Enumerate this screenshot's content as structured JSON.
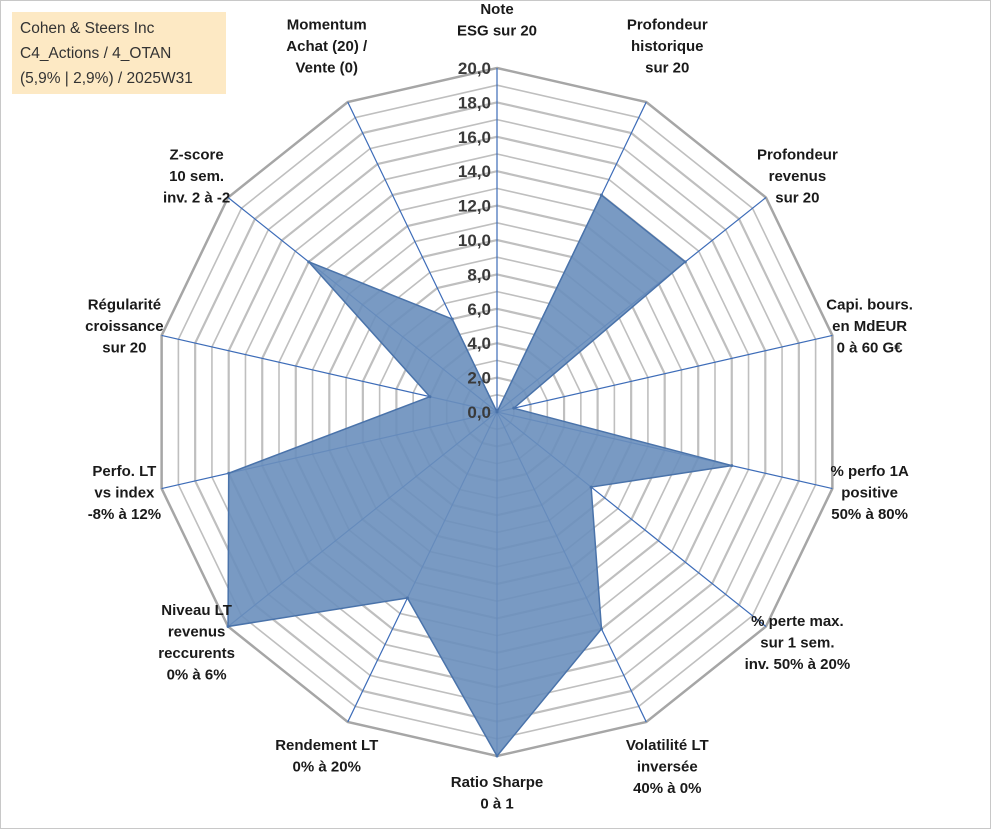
{
  "info_box": {
    "line1": "Cohen & Steers Inc",
    "line2": "C4_Actions / 4_OTAN",
    "line3": "(5,9% | 2,9%) / 2025W31"
  },
  "colors": {
    "fill": "#6a8fbd",
    "stroke": "#4a73aa",
    "spoke": "#3d6cb8",
    "grid": "#bfbfbf",
    "grid_outer": "#a6a6a6",
    "info_bg": "#fde9c4"
  },
  "chart_data": {
    "type": "radar",
    "title": "",
    "rmin": 0,
    "rmax": 20,
    "tick_step": 1,
    "tick_labels": [
      "0,0",
      "2,0",
      "4,0",
      "6,0",
      "8,0",
      "10,0",
      "12,0",
      "14,0",
      "16,0",
      "18,0",
      "20,0"
    ],
    "axes": [
      {
        "label_lines": [
          "Note",
          "ESG sur 20"
        ],
        "value": 0
      },
      {
        "label_lines": [
          "Profondeur",
          "historique",
          "sur 20"
        ],
        "value": 14
      },
      {
        "label_lines": [
          "Profondeur",
          "revenus",
          "sur 20"
        ],
        "value": 14
      },
      {
        "label_lines": [
          "Capi. bours.",
          "en MdEUR",
          "0 à 60 G€"
        ],
        "value": 1
      },
      {
        "label_lines": [
          "% perfo 1A",
          "positive",
          "50% à 80%"
        ],
        "value": 14
      },
      {
        "label_lines": [
          "% perte max.",
          "sur 1 sem.",
          "inv. 50% à 20%"
        ],
        "value": 7
      },
      {
        "label_lines": [
          "Volatilité LT",
          "inversée",
          "40% à 0%"
        ],
        "value": 14
      },
      {
        "label_lines": [
          "Ratio Sharpe",
          "0 à 1"
        ],
        "value": 20
      },
      {
        "label_lines": [
          "Rendement LT",
          "0% à 20%"
        ],
        "value": 12
      },
      {
        "label_lines": [
          "Niveau LT",
          "revenus",
          "reccurents",
          "0% à 6%"
        ],
        "value": 20
      },
      {
        "label_lines": [
          "Perfo. LT",
          "vs index",
          "-8% à 12%"
        ],
        "value": 16
      },
      {
        "label_lines": [
          "Régularité",
          "croissance",
          "sur 20"
        ],
        "value": 4
      },
      {
        "label_lines": [
          "Z-score",
          "10 sem.",
          "inv. 2 à -2"
        ],
        "value": 14
      },
      {
        "label_lines": [
          "Momentum",
          "Achat (20) /",
          "Vente (0)"
        ],
        "value": 6
      }
    ]
  }
}
